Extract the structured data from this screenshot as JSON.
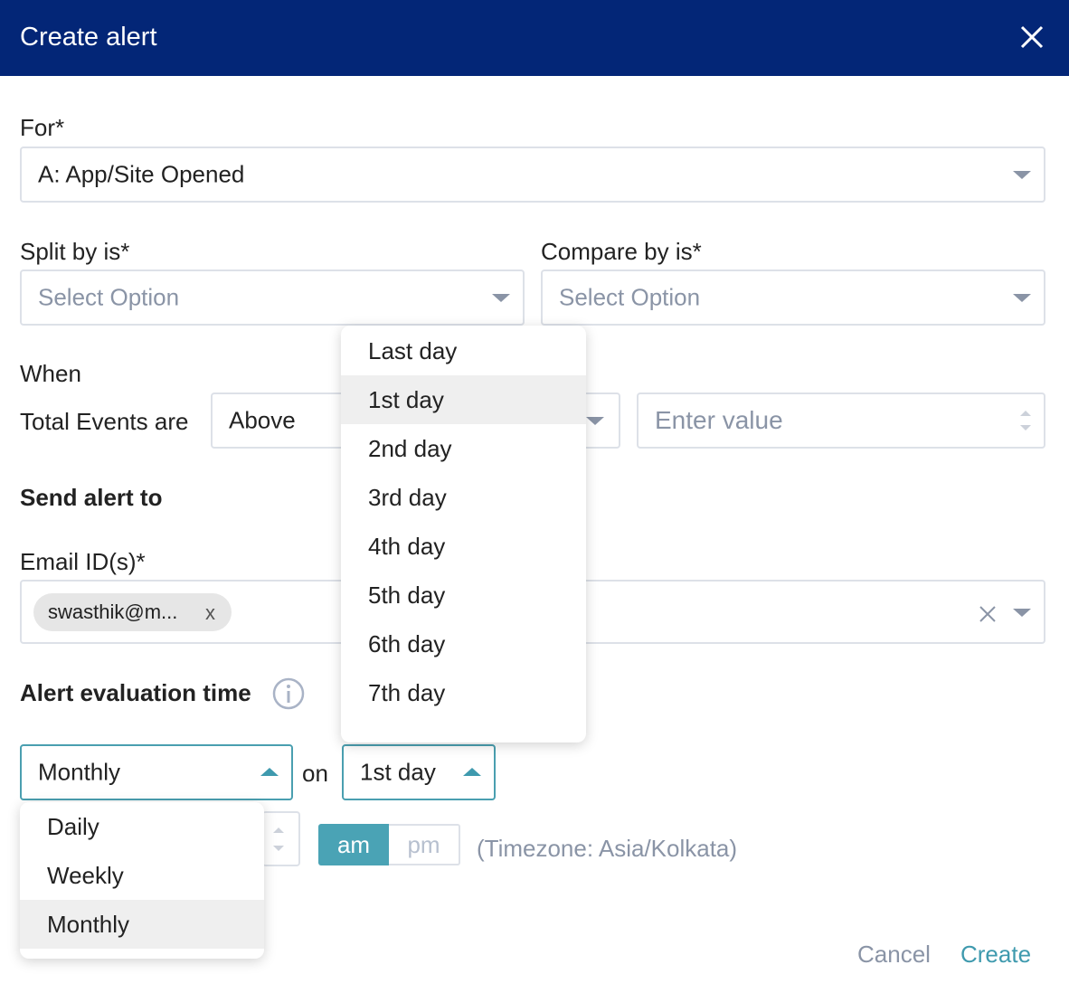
{
  "header": {
    "title": "Create alert"
  },
  "form": {
    "for": {
      "label": "For*",
      "value": "A: App/Site Opened"
    },
    "split_by": {
      "label": "Split by is*",
      "placeholder": "Select Option"
    },
    "compare_by": {
      "label": "Compare by is*",
      "placeholder": "Select Option"
    },
    "when": {
      "label": "When",
      "metric": "Total Events are",
      "operator": "Above",
      "value_placeholder": "Enter value"
    },
    "send_alert": {
      "heading": "Send alert to",
      "email_label": "Email ID(s)*",
      "chips": [
        "swasthik@m..."
      ],
      "chip_remove": "x"
    },
    "evaluation": {
      "heading": "Alert evaluation time",
      "frequency": "Monthly",
      "on": "on",
      "day": "1st day",
      "am": "am",
      "pm": "pm",
      "timezone": "(Timezone: Asia/Kolkata)"
    },
    "day_menu": {
      "options": [
        "Last day",
        "1st day",
        "2nd day",
        "3rd day",
        "4th day",
        "5th day",
        "6th day",
        "7th day"
      ],
      "selected": 1
    },
    "frequency_menu": {
      "options": [
        "Daily",
        "Weekly",
        "Monthly"
      ],
      "selected": 2
    }
  },
  "footer": {
    "cancel": "Cancel",
    "create": "Create"
  }
}
